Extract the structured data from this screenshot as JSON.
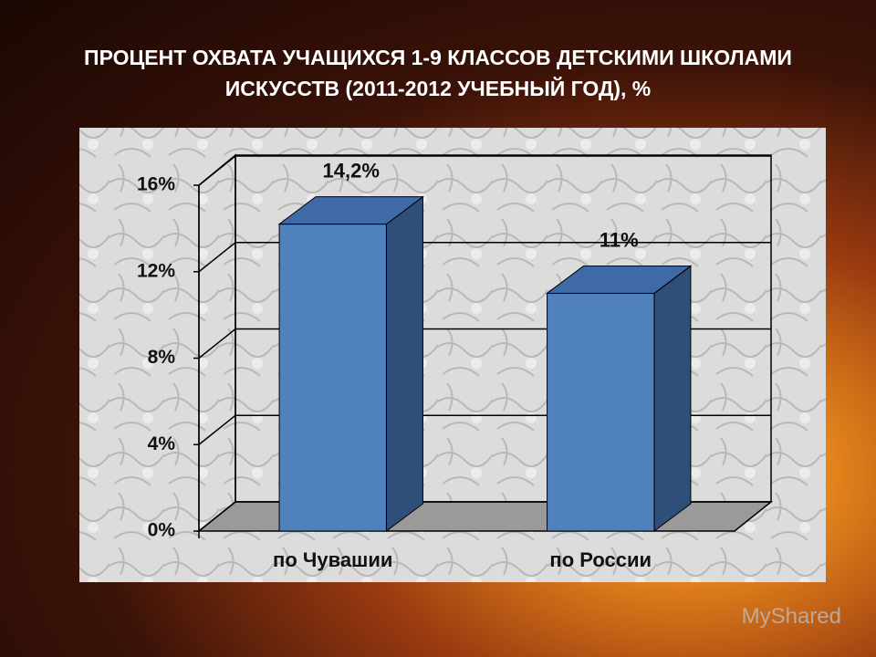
{
  "chart_data": {
    "type": "bar3d",
    "title": "ПРОЦЕНТ ОХВАТА УЧАЩИХСЯ 1-9 КЛАССОВ ДЕТСКИМИ ШКОЛАМИ ИСКУССТВ (2011-2012 УЧЕБНЫЙ ГОД), %",
    "categories": [
      "по Чувашии",
      "по России"
    ],
    "values": [
      14.2,
      11
    ],
    "value_labels": [
      "14,2%",
      "11%"
    ],
    "color": "#4f81bd",
    "ylim": [
      0,
      16
    ],
    "yticks": [
      {
        "value": 0,
        "label": "0%"
      },
      {
        "value": 4,
        "label": "4%"
      },
      {
        "value": 8,
        "label": "8%"
      },
      {
        "value": 12,
        "label": "12%"
      },
      {
        "value": 16,
        "label": "16%"
      }
    ],
    "grid": true
  },
  "watermark": "MyShared"
}
